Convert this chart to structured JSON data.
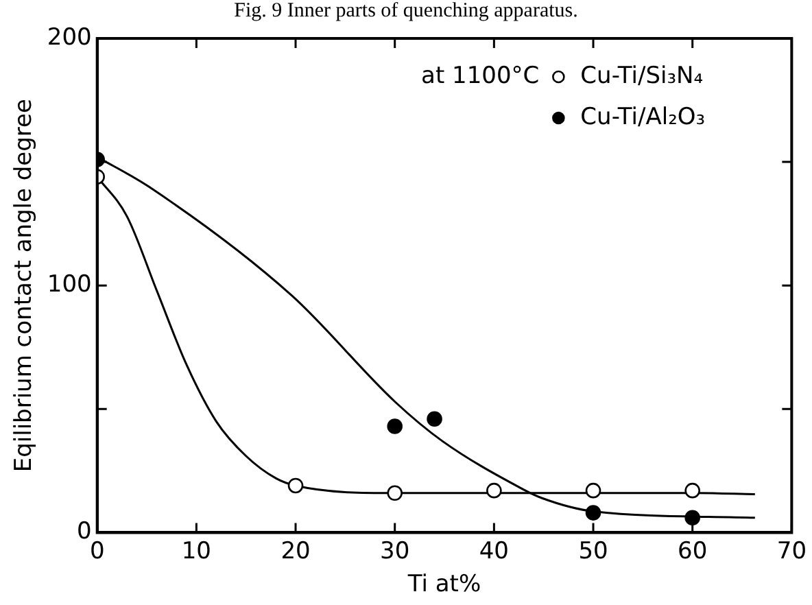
{
  "chart_data": {
    "type": "scatter",
    "annotations": [
      "Fig. 9 Inner parts of quenching apparatus."
    ],
    "xlabel": "Ti at%",
    "ylabel": "Eqilibrium contact angle degree",
    "legend_title": "at 1100°C",
    "legend": "top right",
    "marker": "circle",
    "xlim": [
      0,
      70
    ],
    "xticks": [
      0,
      10,
      20,
      30,
      40,
      50,
      60,
      70
    ],
    "ylim": [
      0,
      200
    ],
    "yticks": [
      0,
      {
        "value": 50,
        "label": null
      },
      100,
      {
        "value": 150,
        "label": null
      },
      200
    ],
    "grid": false,
    "series": [
      {
        "name": "Cu-Ti/Si₃N₄",
        "color": "#ffffff",
        "x": [
          0,
          20,
          30,
          40,
          50,
          60
        ],
        "values": [
          144,
          19,
          16,
          17,
          17,
          17
        ]
      },
      {
        "name": "Cu-Ti/Al₂O₃",
        "color": "#000000",
        "x": [
          0,
          30,
          34,
          50,
          60
        ],
        "values": [
          151,
          43,
          46,
          8,
          6
        ]
      },
      {
        "type": "line",
        "marker": "none",
        "color": "#000000",
        "x": [
          0,
          3,
          6,
          9,
          12,
          15,
          18,
          20,
          30,
          40,
          50,
          60,
          66.3
        ],
        "values": [
          144,
          128,
          98,
          68,
          45,
          31,
          22,
          19,
          16,
          16,
          16,
          16,
          15.5
        ]
      },
      {
        "type": "line",
        "marker": "none",
        "color": "#000000",
        "x": [
          0,
          5.2,
          19.6,
          30,
          34.8,
          42.7,
          44.8,
          50,
          66.3
        ],
        "values": [
          152,
          140,
          96,
          53,
          37,
          18,
          14,
          8.6,
          6
        ]
      }
    ]
  }
}
